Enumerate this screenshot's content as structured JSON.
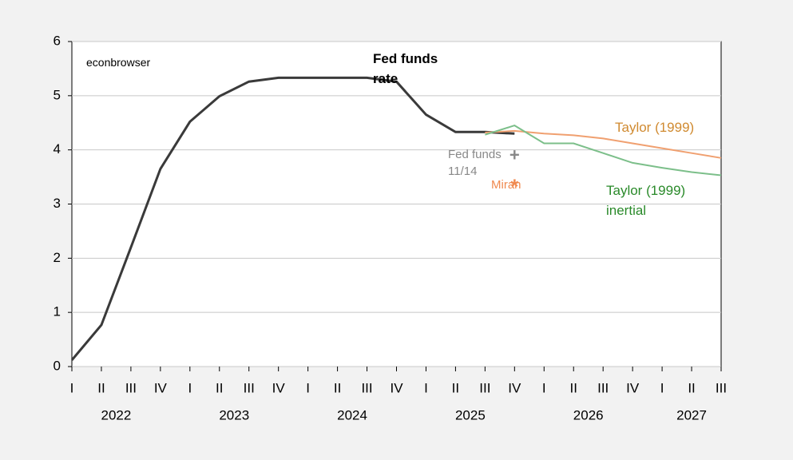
{
  "chart_data": {
    "type": "line",
    "annotation": "econbrowser",
    "categories": [
      "I",
      "II",
      "III",
      "IV",
      "I",
      "II",
      "III",
      "IV",
      "I",
      "II",
      "III",
      "IV",
      "I",
      "II",
      "III",
      "IV",
      "I",
      "II",
      "III",
      "IV",
      "I",
      "II",
      "III"
    ],
    "years": [
      "2022",
      "2023",
      "2024",
      "2025",
      "2026",
      "2027"
    ],
    "ylim": [
      0,
      6
    ],
    "yticks": [
      0,
      1,
      2,
      3,
      4,
      5,
      6
    ],
    "grid": true,
    "series": [
      {
        "name": "Fed funds rate",
        "color": "#3a3a3a",
        "label_color": "#000000",
        "bold": true,
        "values": [
          0.12,
          0.77,
          2.2,
          3.65,
          4.52,
          4.99,
          5.26,
          5.33,
          5.33,
          5.33,
          5.33,
          5.26,
          4.65,
          4.33,
          4.33,
          4.3,
          null,
          null,
          null,
          null,
          null,
          null,
          null
        ]
      },
      {
        "name": "Taylor (1999)",
        "color": "#f0a070",
        "label_color": "#d08a30",
        "values": [
          null,
          null,
          null,
          null,
          null,
          null,
          null,
          null,
          null,
          null,
          null,
          null,
          null,
          null,
          4.32,
          4.35,
          4.3,
          4.27,
          4.21,
          4.12,
          4.03,
          3.94,
          3.85
        ]
      },
      {
        "name": "Taylor (1999) inertial",
        "color": "#7cbf8a",
        "label_color": "#2a8a2a",
        "values": [
          null,
          null,
          null,
          null,
          null,
          null,
          null,
          null,
          null,
          null,
          null,
          null,
          null,
          null,
          4.28,
          4.45,
          4.12,
          4.12,
          3.94,
          3.76,
          3.67,
          3.59,
          3.53
        ]
      },
      {
        "name": "Fed funds 11/14",
        "color": "#888888",
        "label_color": "#888888",
        "marker": "+",
        "values": [
          null,
          null,
          null,
          null,
          null,
          null,
          null,
          null,
          null,
          null,
          null,
          null,
          null,
          null,
          null,
          3.88,
          null,
          null,
          null,
          null,
          null,
          null,
          null
        ]
      },
      {
        "name": "Miran",
        "color": "#f08a50",
        "label_color": "#f08a50",
        "marker": "*",
        "values": [
          null,
          null,
          null,
          null,
          null,
          null,
          null,
          null,
          null,
          null,
          null,
          null,
          null,
          null,
          null,
          3.35,
          null,
          null,
          null,
          null,
          null,
          null,
          null
        ]
      }
    ]
  }
}
